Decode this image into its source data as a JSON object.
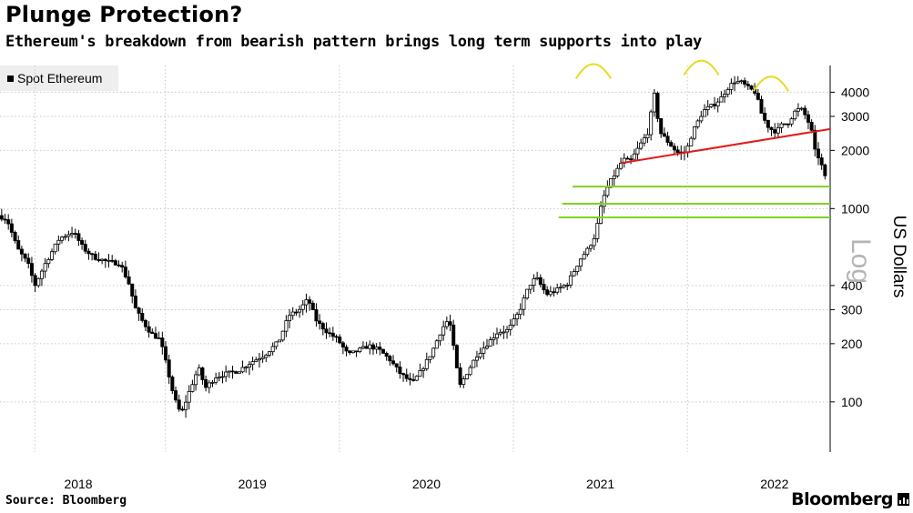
{
  "header": {
    "title": "Plunge Protection?",
    "subtitle": "Ethereum's breakdown from bearish pattern brings long term supports into play"
  },
  "legend": {
    "label": "Spot Ethereum"
  },
  "footer": {
    "source": "Source: Bloomberg",
    "brand": "Bloomberg"
  },
  "chart_data": {
    "type": "candlestick",
    "title": "Plunge Protection?",
    "subtitle": "Ethereum's breakdown from bearish pattern brings long term supports into play",
    "ylabel": "US Dollars",
    "scale_label": "Log",
    "yscale": "log",
    "ylim": [
      55,
      5500
    ],
    "xlim": [
      2017.55,
      2022.32
    ],
    "y_ticks": [
      100,
      200,
      300,
      400,
      1000,
      2000,
      3000,
      4000
    ],
    "x_ticks": [
      {
        "value": 2018.0,
        "label": "2018"
      },
      {
        "value": 2019.0,
        "label": "2019"
      },
      {
        "value": 2020.0,
        "label": "2020"
      },
      {
        "value": 2021.0,
        "label": "2021"
      },
      {
        "value": 2022.0,
        "label": "2022"
      }
    ],
    "x_grid": [
      2017.75,
      2018.5,
      2019.5,
      2020.5,
      2021.5
    ],
    "y_grid": [
      100,
      200,
      300,
      400,
      1000,
      2000,
      3000,
      4000
    ],
    "candle_color": "#000000",
    "price_path": [
      [
        2017.55,
        920
      ],
      [
        2017.6,
        880
      ],
      [
        2017.66,
        620
      ],
      [
        2017.72,
        520
      ],
      [
        2017.76,
        400
      ],
      [
        2017.82,
        520
      ],
      [
        2017.9,
        700
      ],
      [
        2017.98,
        760
      ],
      [
        2018.04,
        620
      ],
      [
        2018.1,
        560
      ],
      [
        2018.18,
        530
      ],
      [
        2018.25,
        520
      ],
      [
        2018.3,
        410
      ],
      [
        2018.34,
        300
      ],
      [
        2018.38,
        260
      ],
      [
        2018.43,
        225
      ],
      [
        2018.48,
        210
      ],
      [
        2018.52,
        150
      ],
      [
        2018.56,
        105
      ],
      [
        2018.6,
        86
      ],
      [
        2018.65,
        115
      ],
      [
        2018.7,
        150
      ],
      [
        2018.74,
        118
      ],
      [
        2018.8,
        135
      ],
      [
        2018.86,
        140
      ],
      [
        2018.93,
        145
      ],
      [
        2019.0,
        160
      ],
      [
        2019.08,
        175
      ],
      [
        2019.16,
        205
      ],
      [
        2019.22,
        280
      ],
      [
        2019.28,
        300
      ],
      [
        2019.33,
        340
      ],
      [
        2019.38,
        260
      ],
      [
        2019.44,
        230
      ],
      [
        2019.5,
        210
      ],
      [
        2019.56,
        175
      ],
      [
        2019.62,
        185
      ],
      [
        2019.68,
        195
      ],
      [
        2019.74,
        185
      ],
      [
        2019.8,
        165
      ],
      [
        2019.86,
        140
      ],
      [
        2019.93,
        125
      ],
      [
        2019.98,
        145
      ],
      [
        2020.04,
        180
      ],
      [
        2020.1,
        240
      ],
      [
        2020.14,
        270
      ],
      [
        2020.2,
        120
      ],
      [
        2020.24,
        140
      ],
      [
        2020.3,
        175
      ],
      [
        2020.36,
        200
      ],
      [
        2020.42,
        230
      ],
      [
        2020.48,
        235
      ],
      [
        2020.54,
        290
      ],
      [
        2020.6,
        400
      ],
      [
        2020.64,
        440
      ],
      [
        2020.7,
        360
      ],
      [
        2020.76,
        380
      ],
      [
        2020.82,
        410
      ],
      [
        2020.86,
        480
      ],
      [
        2020.9,
        560
      ],
      [
        2020.94,
        620
      ],
      [
        2020.98,
        730
      ],
      [
        2021.02,
        1100
      ],
      [
        2021.06,
        1350
      ],
      [
        2021.1,
        1550
      ],
      [
        2021.14,
        1800
      ],
      [
        2021.18,
        1750
      ],
      [
        2021.24,
        2150
      ],
      [
        2021.28,
        2450
      ],
      [
        2021.32,
        3900
      ],
      [
        2021.35,
        2500
      ],
      [
        2021.4,
        2200
      ],
      [
        2021.45,
        1950
      ],
      [
        2021.5,
        1950
      ],
      [
        2021.54,
        2500
      ],
      [
        2021.6,
        3200
      ],
      [
        2021.66,
        3450
      ],
      [
        2021.7,
        3700
      ],
      [
        2021.74,
        4200
      ],
      [
        2021.78,
        4550
      ],
      [
        2021.82,
        4500
      ],
      [
        2021.86,
        4200
      ],
      [
        2021.9,
        4000
      ],
      [
        2021.94,
        3000
      ],
      [
        2021.98,
        2600
      ],
      [
        2022.02,
        2500
      ],
      [
        2022.05,
        2700
      ],
      [
        2022.09,
        2800
      ],
      [
        2022.13,
        3200
      ],
      [
        2022.16,
        3300
      ],
      [
        2022.19,
        3000
      ],
      [
        2022.22,
        2600
      ],
      [
        2022.24,
        2000
      ],
      [
        2022.27,
        1800
      ],
      [
        2022.3,
        1450
      ]
    ],
    "annotations": {
      "arcs": {
        "color": "#e6dc1e",
        "items": [
          {
            "x0": 2020.86,
            "x1": 2021.06,
            "y": 4700
          },
          {
            "x0": 2021.48,
            "x1": 2021.68,
            "y": 4900
          },
          {
            "x0": 2021.88,
            "x1": 2022.08,
            "y": 4050
          }
        ]
      },
      "neckline": {
        "color": "#e41a1a",
        "from": [
          2021.12,
          1720
        ],
        "to": [
          2022.32,
          2580
        ]
      },
      "supports": {
        "color": "#7ed321",
        "items": [
          {
            "x0": 2020.84,
            "x1": 2022.32,
            "y": 1300
          },
          {
            "x0": 2020.78,
            "x1": 2022.32,
            "y": 1060
          },
          {
            "x0": 2020.76,
            "x1": 2022.32,
            "y": 900
          }
        ]
      }
    }
  }
}
